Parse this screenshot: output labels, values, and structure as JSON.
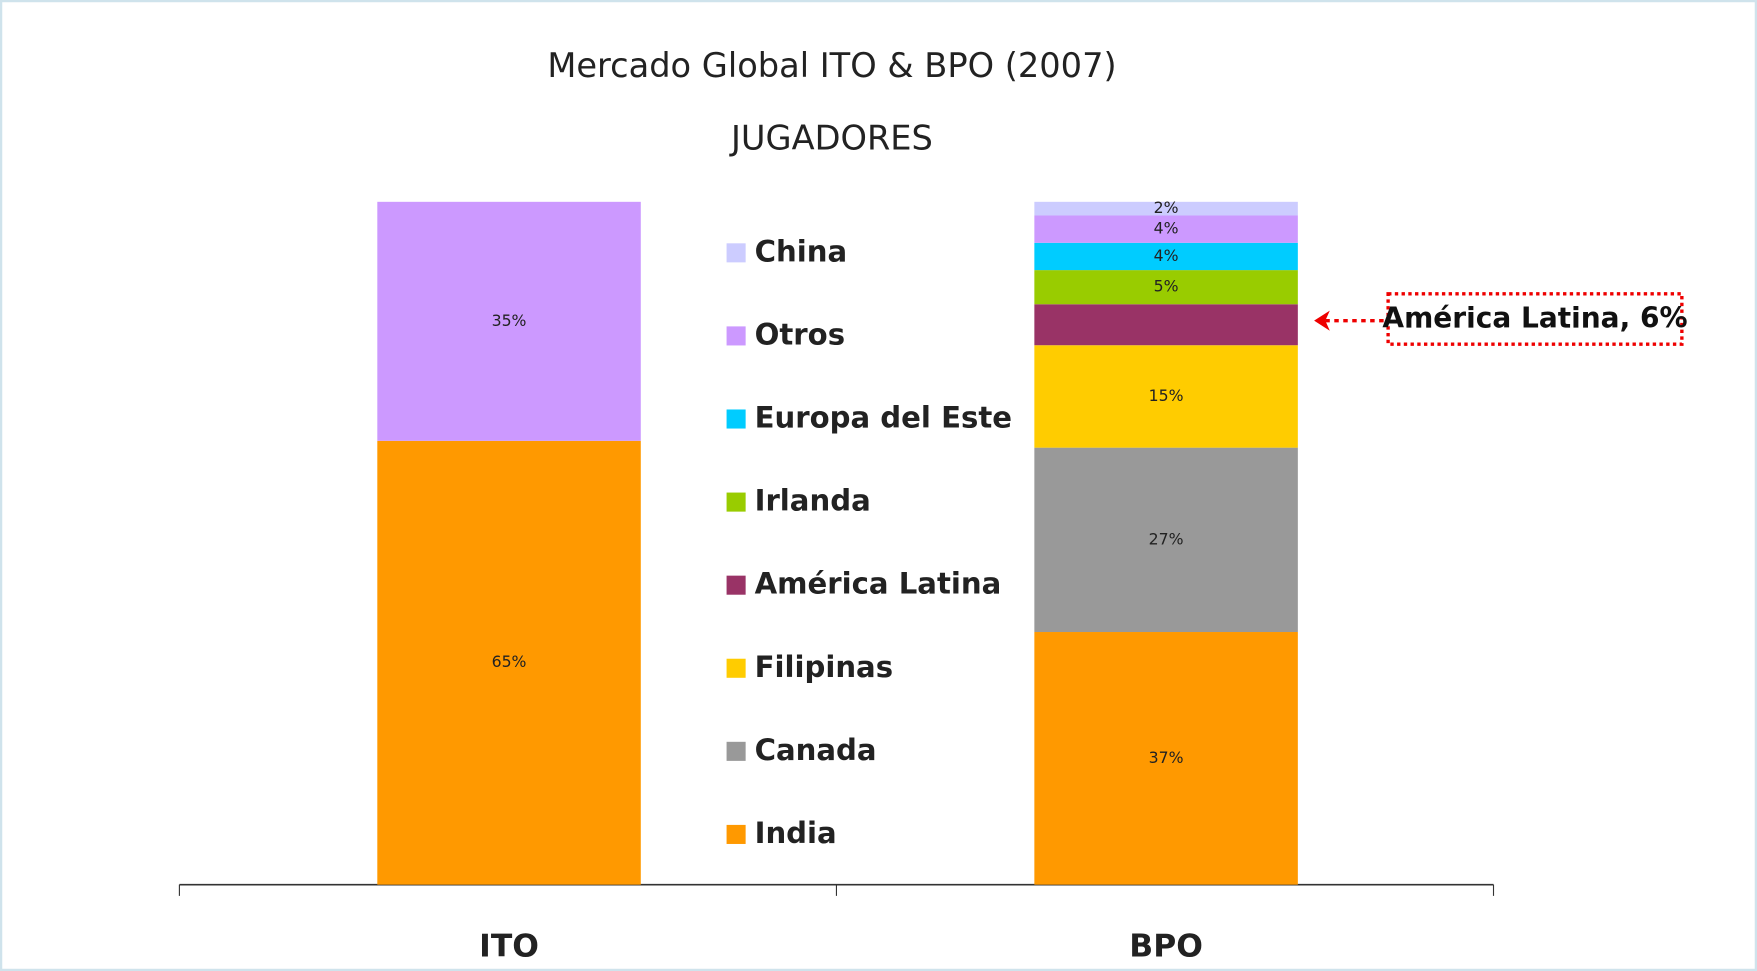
{
  "chart_data": {
    "type": "stacked_bar",
    "title": "Mercado Global ITO & BPO (2007)",
    "subtitle": "JUGADORES",
    "categories": [
      "ITO",
      "BPO"
    ],
    "ylim": [
      0,
      100
    ],
    "series": [
      {
        "name": "India",
        "color": "#ff9900",
        "values": [
          65,
          37
        ],
        "value_labels": [
          "65%",
          "37%"
        ]
      },
      {
        "name": "Canada",
        "color": "#999999",
        "values": [
          null,
          27
        ],
        "value_labels": [
          null,
          "27%"
        ]
      },
      {
        "name": "Filipinas",
        "color": "#ffcc00",
        "values": [
          null,
          15
        ],
        "value_labels": [
          null,
          "15%"
        ]
      },
      {
        "name": "América Latina",
        "color": "#993366",
        "values": [
          null,
          6
        ],
        "value_labels": [
          null,
          null
        ]
      },
      {
        "name": "Irlanda",
        "color": "#99cc00",
        "values": [
          null,
          5
        ],
        "value_labels": [
          null,
          "5%"
        ]
      },
      {
        "name": "Europa del Este",
        "color": "#00ccff",
        "values": [
          null,
          4
        ],
        "value_labels": [
          null,
          "4%"
        ]
      },
      {
        "name": "Otros",
        "color": "#cc99ff",
        "values": [
          35,
          4
        ],
        "value_labels": [
          "35%",
          "4%"
        ]
      },
      {
        "name": "China",
        "color": "#ccccff",
        "values": [
          null,
          2
        ],
        "value_labels": [
          null,
          "2%"
        ]
      }
    ],
    "annotation": "América Latina, 6%"
  }
}
